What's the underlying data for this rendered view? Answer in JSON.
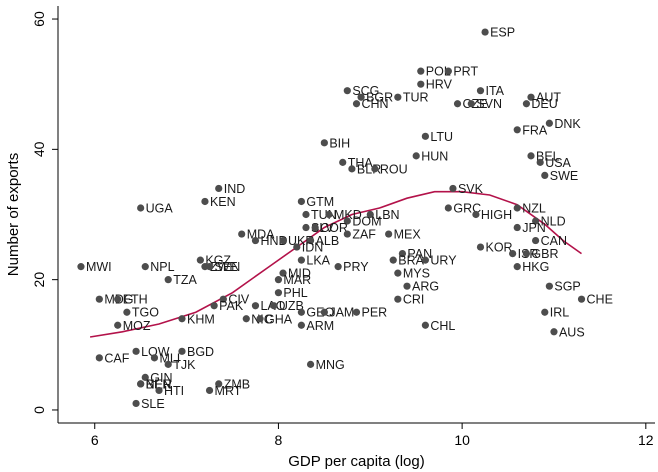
{
  "chart_data": {
    "type": "scatter",
    "xlabel": "GDP per capita (log)",
    "ylabel": "Number of exports",
    "xlim": [
      5.6,
      12.1
    ],
    "ylim": [
      -2,
      62
    ],
    "xticks": [
      6,
      8,
      10,
      12
    ],
    "yticks": [
      0,
      20,
      40,
      60
    ],
    "grid": false,
    "colors": {
      "points": "#4d4d4d",
      "fit_line": "#b3124a",
      "axis": "#000000"
    },
    "points": [
      {
        "label": "ESP",
        "x": 10.25,
        "y": 58
      },
      {
        "label": "POL",
        "x": 9.55,
        "y": 52
      },
      {
        "label": "PRT",
        "x": 9.85,
        "y": 52
      },
      {
        "label": "HRV",
        "x": 9.55,
        "y": 50
      },
      {
        "label": "SCG",
        "x": 8.75,
        "y": 49
      },
      {
        "label": "BGR",
        "x": 8.9,
        "y": 48
      },
      {
        "label": "TUR",
        "x": 9.3,
        "y": 48
      },
      {
        "label": "CHN",
        "x": 8.85,
        "y": 47
      },
      {
        "label": "ITA",
        "x": 10.2,
        "y": 49
      },
      {
        "label": "AUT",
        "x": 10.75,
        "y": 48
      },
      {
        "label": "CZE",
        "x": 9.95,
        "y": 47
      },
      {
        "label": "SVN",
        "x": 10.1,
        "y": 47
      },
      {
        "label": "DEU",
        "x": 10.7,
        "y": 47
      },
      {
        "label": "DNK",
        "x": 10.95,
        "y": 44
      },
      {
        "label": "FRA",
        "x": 10.6,
        "y": 43
      },
      {
        "label": "LTU",
        "x": 9.6,
        "y": 42
      },
      {
        "label": "HUN",
        "x": 9.5,
        "y": 39
      },
      {
        "label": "BIH",
        "x": 8.5,
        "y": 41
      },
      {
        "label": "THA",
        "x": 8.7,
        "y": 38
      },
      {
        "label": "BLR",
        "x": 8.8,
        "y": 37
      },
      {
        "label": "ROU",
        "x": 9.05,
        "y": 37
      },
      {
        "label": "BEL",
        "x": 10.75,
        "y": 39
      },
      {
        "label": "USA",
        "x": 10.85,
        "y": 38
      },
      {
        "label": "SWE",
        "x": 10.9,
        "y": 36
      },
      {
        "label": "IND",
        "x": 7.35,
        "y": 34
      },
      {
        "label": "KEN",
        "x": 7.2,
        "y": 32
      },
      {
        "label": "UGA",
        "x": 6.5,
        "y": 31
      },
      {
        "label": "GTM",
        "x": 8.25,
        "y": 32
      },
      {
        "label": "SVK",
        "x": 9.9,
        "y": 34
      },
      {
        "label": "GRC",
        "x": 9.85,
        "y": 31
      },
      {
        "label": "HIGH",
        "x": 10.15,
        "y": 30
      },
      {
        "label": "NZL",
        "x": 10.6,
        "y": 31
      },
      {
        "label": "NLD",
        "x": 10.8,
        "y": 29
      },
      {
        "label": "JPN",
        "x": 10.6,
        "y": 28
      },
      {
        "label": "CAN",
        "x": 10.8,
        "y": 26
      },
      {
        "label": "TUN",
        "x": 8.3,
        "y": 30
      },
      {
        "label": "MKD",
        "x": 8.55,
        "y": 30
      },
      {
        "label": "LBN",
        "x": 9.0,
        "y": 30
      },
      {
        "label": "SLV",
        "x": 8.3,
        "y": 28
      },
      {
        "label": "DOM",
        "x": 8.75,
        "y": 29
      },
      {
        "label": "COR",
        "x": 8.4,
        "y": 28
      },
      {
        "label": "ZAF",
        "x": 8.75,
        "y": 27
      },
      {
        "label": "MEX",
        "x": 9.2,
        "y": 27
      },
      {
        "label": "MDA",
        "x": 7.6,
        "y": 27
      },
      {
        "label": "HND",
        "x": 7.75,
        "y": 26
      },
      {
        "label": "UKR",
        "x": 8.05,
        "y": 26
      },
      {
        "label": "ALB",
        "x": 8.35,
        "y": 26
      },
      {
        "label": "IDN",
        "x": 8.2,
        "y": 25
      },
      {
        "label": "KOR",
        "x": 10.2,
        "y": 25
      },
      {
        "label": "ISR",
        "x": 10.55,
        "y": 24
      },
      {
        "label": "GBR",
        "x": 10.7,
        "y": 24
      },
      {
        "label": "MWI",
        "x": 5.85,
        "y": 22
      },
      {
        "label": "NPL",
        "x": 6.55,
        "y": 22
      },
      {
        "label": "KGZ",
        "x": 7.15,
        "y": 23
      },
      {
        "label": "ZWE",
        "x": 7.2,
        "y": 22
      },
      {
        "label": "SEN",
        "x": 7.25,
        "y": 22
      },
      {
        "label": "LKA",
        "x": 8.25,
        "y": 23
      },
      {
        "label": "PAN",
        "x": 9.35,
        "y": 24
      },
      {
        "label": "BRA",
        "x": 9.25,
        "y": 23
      },
      {
        "label": "URY",
        "x": 9.6,
        "y": 23
      },
      {
        "label": "PRY",
        "x": 8.65,
        "y": 22
      },
      {
        "label": "HKG",
        "x": 10.6,
        "y": 22
      },
      {
        "label": "MYS",
        "x": 9.3,
        "y": 21
      },
      {
        "label": "TZA",
        "x": 6.8,
        "y": 20
      },
      {
        "label": "MID",
        "x": 8.05,
        "y": 21
      },
      {
        "label": "MAR",
        "x": 8.0,
        "y": 20
      },
      {
        "label": "ARG",
        "x": 9.4,
        "y": 19
      },
      {
        "label": "SGP",
        "x": 10.95,
        "y": 19
      },
      {
        "label": "PHL",
        "x": 8.0,
        "y": 18
      },
      {
        "label": "CHE",
        "x": 11.3,
        "y": 17
      },
      {
        "label": "MDG",
        "x": 6.05,
        "y": 17
      },
      {
        "label": "ETH",
        "x": 6.25,
        "y": 17
      },
      {
        "label": "CIV",
        "x": 7.4,
        "y": 17
      },
      {
        "label": "CRI",
        "x": 9.3,
        "y": 17
      },
      {
        "label": "PAK",
        "x": 7.3,
        "y": 16
      },
      {
        "label": "LAO",
        "x": 7.75,
        "y": 16
      },
      {
        "label": "UZB",
        "x": 7.95,
        "y": 16
      },
      {
        "label": "TGO",
        "x": 6.35,
        "y": 15
      },
      {
        "label": "GEO",
        "x": 8.25,
        "y": 15
      },
      {
        "label": "JAM",
        "x": 8.5,
        "y": 15
      },
      {
        "label": "PER",
        "x": 8.85,
        "y": 15
      },
      {
        "label": "IRL",
        "x": 10.9,
        "y": 15
      },
      {
        "label": "KHM",
        "x": 6.95,
        "y": 14
      },
      {
        "label": "NIC",
        "x": 7.65,
        "y": 14
      },
      {
        "label": "GHA",
        "x": 7.8,
        "y": 14
      },
      {
        "label": "MOZ",
        "x": 6.25,
        "y": 13
      },
      {
        "label": "ARM",
        "x": 8.25,
        "y": 13
      },
      {
        "label": "CHL",
        "x": 9.6,
        "y": 13
      },
      {
        "label": "AUS",
        "x": 11.0,
        "y": 12
      },
      {
        "label": "LOW",
        "x": 6.45,
        "y": 9
      },
      {
        "label": "BGD",
        "x": 6.95,
        "y": 9
      },
      {
        "label": "CAF",
        "x": 6.05,
        "y": 8
      },
      {
        "label": "MLI",
        "x": 6.65,
        "y": 8
      },
      {
        "label": "TJK",
        "x": 6.8,
        "y": 7
      },
      {
        "label": "MNG",
        "x": 8.35,
        "y": 7
      },
      {
        "label": "GIN",
        "x": 6.55,
        "y": 5
      },
      {
        "label": "BEN",
        "x": 6.5,
        "y": 4
      },
      {
        "label": "ZMB",
        "x": 7.35,
        "y": 4
      },
      {
        "label": "NER",
        "x": 6.5,
        "y": 4
      },
      {
        "label": "HTI",
        "x": 6.7,
        "y": 3
      },
      {
        "label": "MRT",
        "x": 7.25,
        "y": 3
      },
      {
        "label": "SLE",
        "x": 6.45,
        "y": 1
      }
    ],
    "fit_line": [
      {
        "x": 5.95,
        "y": 11.2
      },
      {
        "x": 6.3,
        "y": 12.0
      },
      {
        "x": 6.7,
        "y": 13.2
      },
      {
        "x": 7.1,
        "y": 15.0
      },
      {
        "x": 7.5,
        "y": 18.0
      },
      {
        "x": 7.9,
        "y": 22.0
      },
      {
        "x": 8.2,
        "y": 25.0
      },
      {
        "x": 8.5,
        "y": 28.0
      },
      {
        "x": 8.8,
        "y": 30.0
      },
      {
        "x": 9.1,
        "y": 31.0
      },
      {
        "x": 9.4,
        "y": 32.5
      },
      {
        "x": 9.7,
        "y": 33.5
      },
      {
        "x": 10.0,
        "y": 33.5
      },
      {
        "x": 10.3,
        "y": 33.0
      },
      {
        "x": 10.6,
        "y": 31.5
      },
      {
        "x": 10.9,
        "y": 28.5
      },
      {
        "x": 11.1,
        "y": 26.0
      },
      {
        "x": 11.3,
        "y": 24.0
      }
    ]
  }
}
